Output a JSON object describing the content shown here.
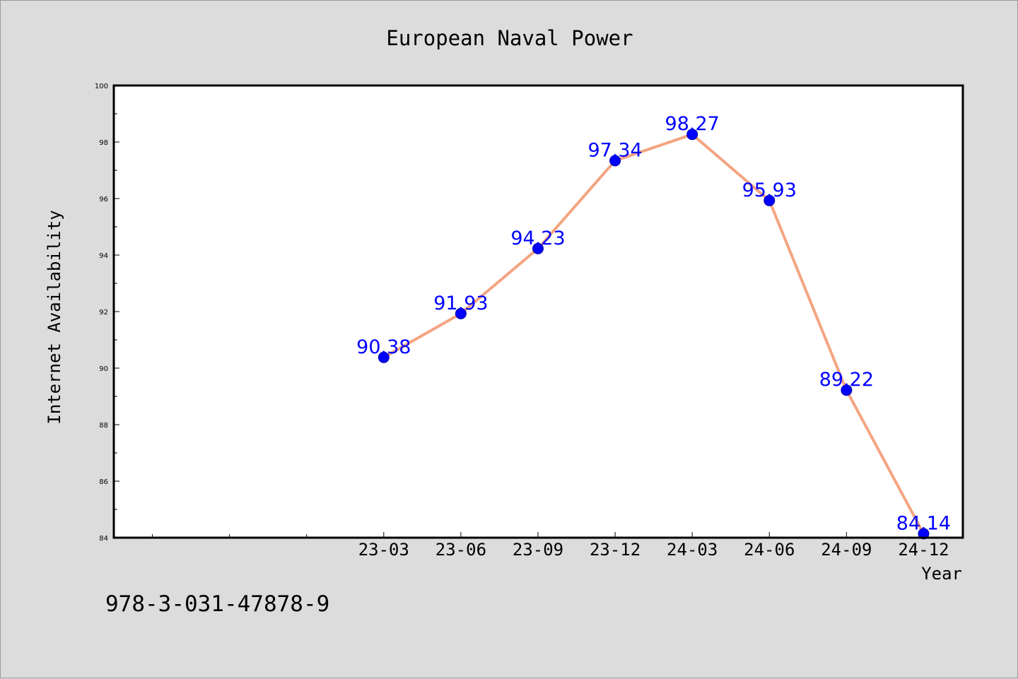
{
  "chart_data": {
    "type": "line",
    "title": "European Naval Power",
    "xlabel": "Year",
    "ylabel": "Internet Availability",
    "categories": [
      "23-03",
      "23-06",
      "23-09",
      "23-12",
      "24-03",
      "24-06",
      "24-09",
      "24-12"
    ],
    "series": [
      {
        "values": [
          90.38,
          91.93,
          94.23,
          97.34,
          98.27,
          95.93,
          89.22,
          84.14
        ]
      }
    ],
    "data_labels": [
      "90.38",
      "91.93",
      "94.23",
      "97.34",
      "98.27",
      "95.93",
      "89.22",
      "84.14"
    ],
    "ylim": [
      84,
      100
    ],
    "yticks": [
      "84",
      "86",
      "88",
      "90",
      "92",
      "94",
      "96",
      "98",
      "100"
    ],
    "x_slot_range": [
      -3.5,
      7.5
    ],
    "grid": false,
    "legend": "none",
    "colors": {
      "line": "#f4a582",
      "marker": "#0000ff",
      "data_label": "#0000ff",
      "figure_background": "#dcdcdc",
      "plot_background": "#ffffff"
    }
  },
  "footnote": "978-3-031-47878-9"
}
